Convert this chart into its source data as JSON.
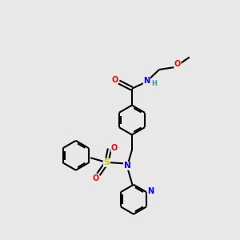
{
  "bg_color": "#e8e8e8",
  "bond_color": "#000000",
  "atom_colors": {
    "O": "#ff0000",
    "N": "#0000ff",
    "S": "#cccc00",
    "H": "#4a9090",
    "C": "#000000"
  },
  "figsize": [
    3.0,
    3.0
  ],
  "dpi": 100
}
